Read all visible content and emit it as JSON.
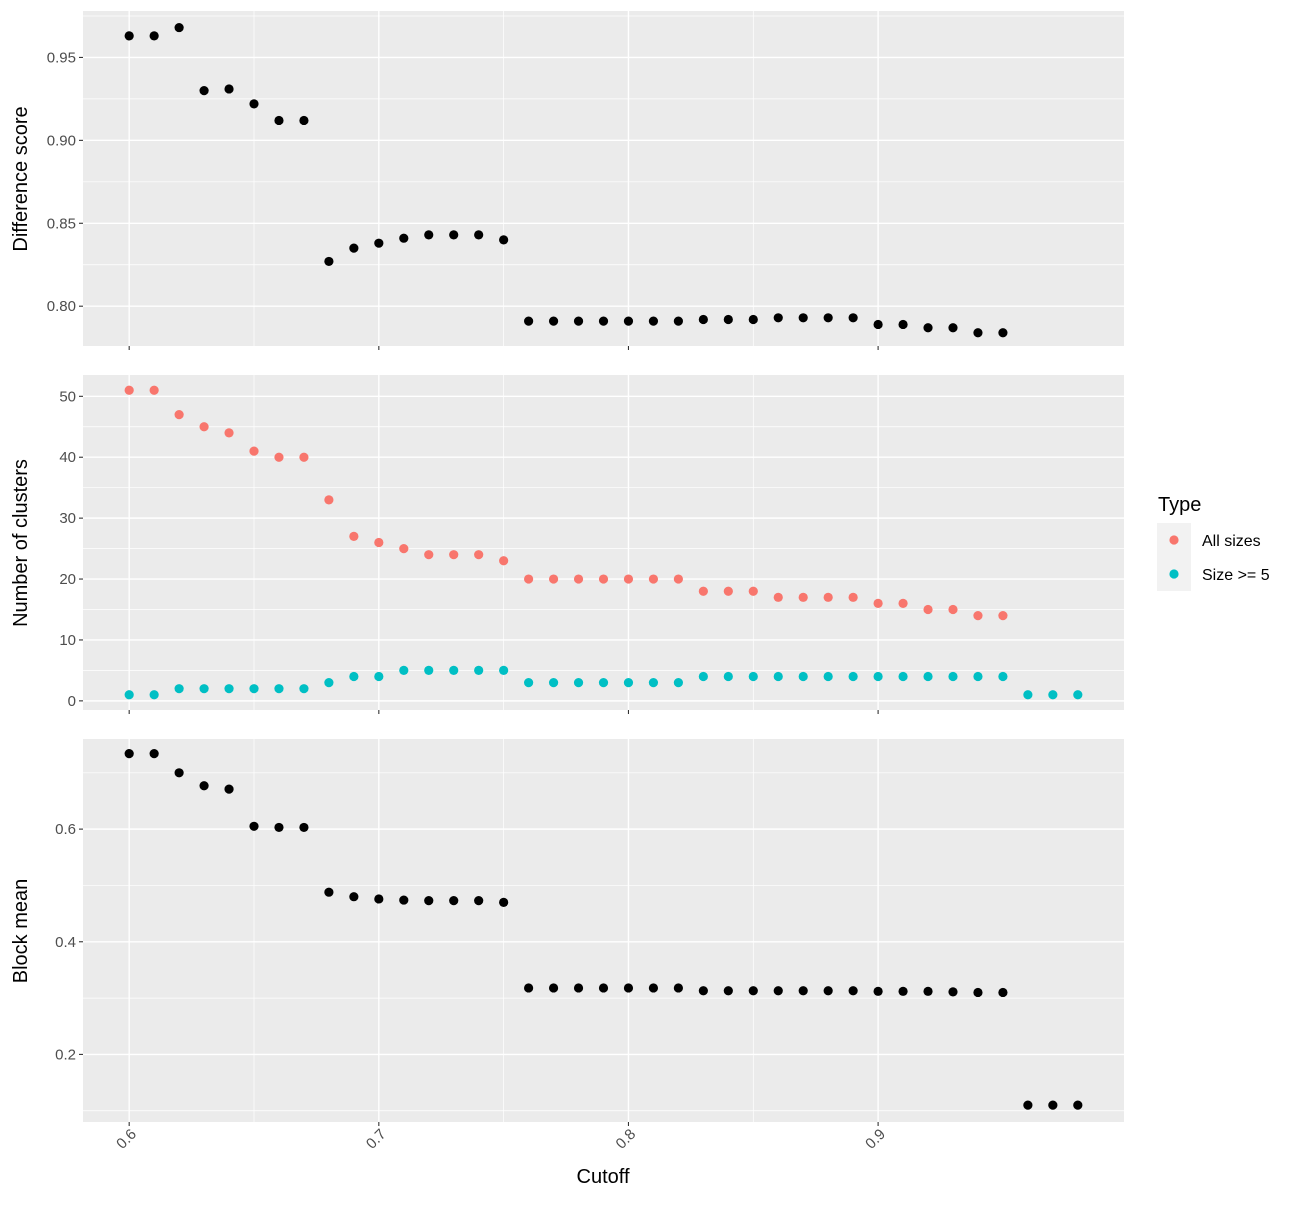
{
  "chart_data": {
    "type": "scatter",
    "xlabel": "Cutoff",
    "xlim": [
      0.5815,
      0.9985
    ],
    "x_ticks": [
      "0.6",
      "0.7",
      "0.8",
      "0.9"
    ],
    "x_tick_values": [
      0.6,
      0.7,
      0.8,
      0.9
    ],
    "grid": true,
    "legend_position": "right",
    "panels": [
      {
        "ylabel": "Difference score",
        "ylim": [
          0.776,
          0.978
        ],
        "y_ticks": [
          "0.80",
          "0.85",
          "0.90",
          "0.95"
        ],
        "y_tick_values": [
          0.8,
          0.85,
          0.9,
          0.95
        ],
        "series": [
          {
            "color": "#000000",
            "x": [
              0.6,
              0.61,
              0.62,
              0.63,
              0.64,
              0.65,
              0.66,
              0.67,
              0.68,
              0.69,
              0.7,
              0.71,
              0.72,
              0.73,
              0.74,
              0.75,
              0.76,
              0.77,
              0.78,
              0.79,
              0.8,
              0.81,
              0.82,
              0.83,
              0.84,
              0.85,
              0.86,
              0.87,
              0.88,
              0.89,
              0.9,
              0.91,
              0.92,
              0.93,
              0.94,
              0.95
            ],
            "values": [
              0.963,
              0.963,
              0.968,
              0.93,
              0.931,
              0.922,
              0.912,
              0.912,
              0.827,
              0.835,
              0.838,
              0.841,
              0.843,
              0.843,
              0.843,
              0.84,
              0.791,
              0.791,
              0.791,
              0.791,
              0.791,
              0.791,
              0.791,
              0.792,
              0.792,
              0.792,
              0.793,
              0.793,
              0.793,
              0.793,
              0.789,
              0.789,
              0.787,
              0.787,
              0.784,
              0.784
            ]
          }
        ]
      },
      {
        "ylabel": "Number of clusters",
        "ylim": [
          -1.5,
          53.5
        ],
        "y_ticks": [
          "0",
          "10",
          "20",
          "30",
          "40",
          "50"
        ],
        "y_tick_values": [
          0,
          10,
          20,
          30,
          40,
          50
        ],
        "series": [
          {
            "name": "All sizes",
            "color": "#F8766D",
            "x": [
              0.6,
              0.61,
              0.62,
              0.63,
              0.64,
              0.65,
              0.66,
              0.67,
              0.68,
              0.69,
              0.7,
              0.71,
              0.72,
              0.73,
              0.74,
              0.75,
              0.76,
              0.77,
              0.78,
              0.79,
              0.8,
              0.81,
              0.82,
              0.83,
              0.84,
              0.85,
              0.86,
              0.87,
              0.88,
              0.89,
              0.9,
              0.91,
              0.92,
              0.93,
              0.94,
              0.95
            ],
            "values": [
              51,
              51,
              47,
              45,
              44,
              41,
              40,
              40,
              33,
              27,
              26,
              25,
              24,
              24,
              24,
              23,
              20,
              20,
              20,
              20,
              20,
              20,
              20,
              18,
              18,
              18,
              17,
              17,
              17,
              17,
              16,
              16,
              15,
              15,
              14,
              14
            ]
          },
          {
            "name": "Size >= 5",
            "color": "#00BFC4",
            "x": [
              0.6,
              0.61,
              0.62,
              0.63,
              0.64,
              0.65,
              0.66,
              0.67,
              0.68,
              0.69,
              0.7,
              0.71,
              0.72,
              0.73,
              0.74,
              0.75,
              0.76,
              0.77,
              0.78,
              0.79,
              0.8,
              0.81,
              0.82,
              0.83,
              0.84,
              0.85,
              0.86,
              0.87,
              0.88,
              0.89,
              0.9,
              0.91,
              0.92,
              0.93,
              0.94,
              0.95,
              0.96,
              0.97,
              0.98
            ],
            "values": [
              1,
              1,
              2,
              2,
              2,
              2,
              2,
              2,
              3,
              4,
              4,
              5,
              5,
              5,
              5,
              5,
              3,
              3,
              3,
              3,
              3,
              3,
              3,
              4,
              4,
              4,
              4,
              4,
              4,
              4,
              4,
              4,
              4,
              4,
              4,
              4,
              1,
              1,
              1
            ]
          }
        ]
      },
      {
        "ylabel": "Block mean",
        "ylim": [
          0.08,
          0.76
        ],
        "y_ticks": [
          "0.2",
          "0.4",
          "0.6"
        ],
        "y_tick_values": [
          0.2,
          0.4,
          0.6
        ],
        "series": [
          {
            "color": "#000000",
            "x": [
              0.6,
              0.61,
              0.62,
              0.63,
              0.64,
              0.65,
              0.66,
              0.67,
              0.68,
              0.69,
              0.7,
              0.71,
              0.72,
              0.73,
              0.74,
              0.75,
              0.76,
              0.77,
              0.78,
              0.79,
              0.8,
              0.81,
              0.82,
              0.83,
              0.84,
              0.85,
              0.86,
              0.87,
              0.88,
              0.89,
              0.9,
              0.91,
              0.92,
              0.93,
              0.94,
              0.95,
              0.96,
              0.97,
              0.98
            ],
            "values": [
              0.734,
              0.734,
              0.7,
              0.677,
              0.671,
              0.605,
              0.603,
              0.603,
              0.488,
              0.48,
              0.476,
              0.474,
              0.473,
              0.473,
              0.473,
              0.47,
              0.318,
              0.318,
              0.318,
              0.318,
              0.318,
              0.318,
              0.318,
              0.313,
              0.313,
              0.313,
              0.313,
              0.313,
              0.313,
              0.313,
              0.312,
              0.312,
              0.312,
              0.311,
              0.31,
              0.31,
              0.11,
              0.11,
              0.11
            ]
          }
        ]
      }
    ],
    "legend": {
      "title": "Type",
      "entries": [
        {
          "label": "All sizes",
          "color": "#F8766D"
        },
        {
          "label": "Size >= 5",
          "color": "#00BFC4"
        }
      ]
    }
  }
}
